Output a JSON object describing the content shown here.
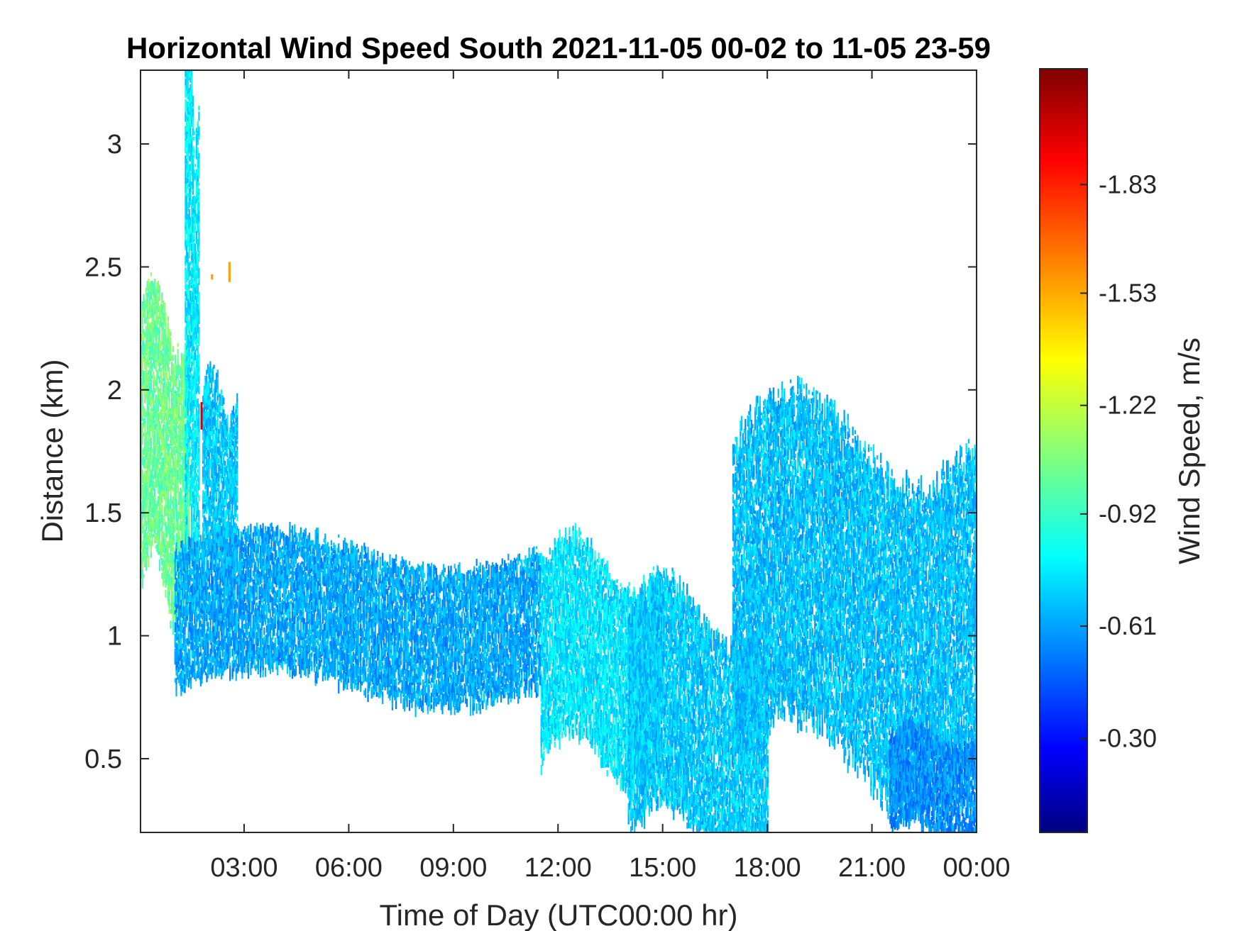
{
  "chart_data": {
    "type": "heatmap",
    "title": "Horizontal Wind Speed South 2021-11-05 00-02 to 11-05 23-59",
    "xlabel": "Time of Day (UTC00:00 hr)",
    "ylabel": "Distance (km)",
    "x_ticks": [
      "03:00",
      "06:00",
      "09:00",
      "12:00",
      "15:00",
      "18:00",
      "21:00",
      "00:00"
    ],
    "x_tick_hours": [
      3,
      6,
      9,
      12,
      15,
      18,
      21,
      24
    ],
    "xlim_hours": [
      0.03,
      24
    ],
    "y_ticks": [
      "0.5",
      "1",
      "1.5",
      "2",
      "2.5",
      "3"
    ],
    "y_tick_values": [
      0.5,
      1,
      1.5,
      2,
      2.5,
      3
    ],
    "ylim": [
      0.2,
      3.3
    ],
    "grid": false,
    "colorbar": {
      "label": "Wind Speed, m/s",
      "colormap": "jet",
      "range": [
        -0.04,
        -2.15
      ],
      "ticks": [
        "-0.30",
        "-0.61",
        "-0.92",
        "-1.22",
        "-1.53",
        "-1.83"
      ],
      "tick_values": [
        -0.3,
        -0.61,
        -0.92,
        -1.22,
        -1.53,
        -1.83
      ]
    },
    "regions": [
      {
        "name": "early-column",
        "hours": [
          0.03,
          1.4
        ],
        "distance_km": [
          1.2,
          2.3
        ],
        "speed": -1.05
      },
      {
        "name": "plume",
        "hours": [
          1.3,
          1.7
        ],
        "distance_km": [
          1.3,
          3.3
        ],
        "speed": -0.8
      },
      {
        "name": "second-column",
        "hours": [
          1.8,
          2.8
        ],
        "distance_km": [
          1.3,
          2.0
        ],
        "speed": -0.72
      },
      {
        "name": "morning-band",
        "hours": [
          1.0,
          11.5
        ],
        "distance_km": [
          0.8,
          1.35
        ],
        "speed": -0.65
      },
      {
        "name": "midday-dip",
        "hours": [
          11.5,
          15.0
        ],
        "distance_km": [
          0.5,
          1.3
        ],
        "speed": -0.78
      },
      {
        "name": "afternoon-low",
        "hours": [
          14.0,
          18.0
        ],
        "distance_km": [
          0.2,
          1.1
        ],
        "speed": -0.72
      },
      {
        "name": "evening-rise",
        "hours": [
          17.0,
          24.0
        ],
        "distance_km": [
          0.5,
          1.8
        ],
        "speed": -0.7
      },
      {
        "name": "late-low",
        "hours": [
          21.5,
          24.0
        ],
        "distance_km": [
          0.2,
          0.6
        ],
        "speed": -0.6
      },
      {
        "name": "outliers",
        "hours": [
          1.7,
          2.6
        ],
        "distance_km": [
          1.85,
          2.55
        ],
        "speed": -1.9
      }
    ]
  }
}
